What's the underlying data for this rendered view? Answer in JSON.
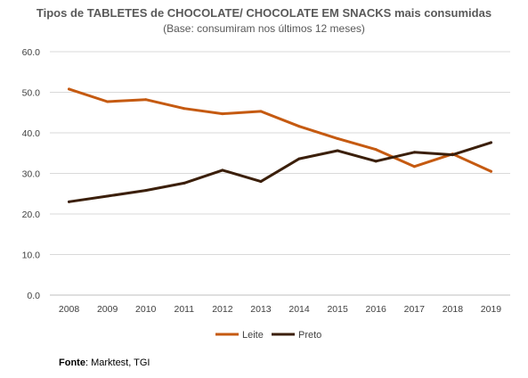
{
  "chart_data": {
    "type": "line",
    "title": "Tipos de TABLETES de CHOCOLATE/ CHOCOLATE EM SNACKS mais consumidas",
    "subtitle": "(Base: consumiram nos últimos 12 meses)",
    "categories": [
      "2008",
      "2009",
      "2010",
      "2011",
      "2012",
      "2013",
      "2014",
      "2015",
      "2016",
      "2017",
      "2018",
      "2019"
    ],
    "series": [
      {
        "name": "Leite",
        "color": "#C55A11",
        "values": [
          50.8,
          47.7,
          48.2,
          46.0,
          44.7,
          45.3,
          41.6,
          38.6,
          35.9,
          31.7,
          34.8,
          30.5
        ]
      },
      {
        "name": "Preto",
        "color": "#3B1F0A",
        "values": [
          23.0,
          24.4,
          25.8,
          27.6,
          30.8,
          28.0,
          33.6,
          35.6,
          33.0,
          35.2,
          34.6,
          37.6
        ]
      }
    ],
    "yticks": [
      "0.0",
      "10.0",
      "20.0",
      "30.0",
      "40.0",
      "50.0",
      "60.0"
    ],
    "ylim": [
      0,
      60
    ],
    "grid": true,
    "legend": "bottom"
  },
  "source": {
    "label": "Fonte",
    "text": ": Marktest, TGI"
  }
}
